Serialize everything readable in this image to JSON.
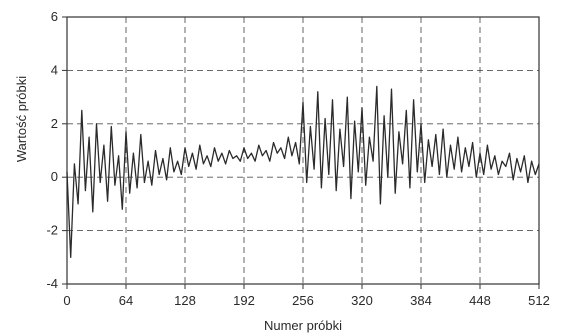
{
  "chart_data": {
    "type": "line",
    "title": "",
    "xlabel": "Numer próbki",
    "ylabel": "Wartość próbki",
    "xlim": [
      0,
      512
    ],
    "ylim": [
      -4,
      6
    ],
    "xticks": [
      0,
      64,
      128,
      192,
      256,
      320,
      384,
      448,
      512
    ],
    "yticks": [
      -4,
      -2,
      0,
      2,
      4,
      6
    ],
    "xtick_labels": [
      "0",
      "64",
      "128",
      "192",
      "256",
      "320",
      "384",
      "448",
      "512"
    ],
    "ytick_labels": [
      "-4",
      "-2",
      "0",
      "2",
      "4",
      "6"
    ],
    "grid": true,
    "legend": "none",
    "series": [
      {
        "x": [
          0,
          4,
          8,
          12,
          16,
          20,
          24,
          28,
          32,
          36,
          40,
          44,
          48,
          52,
          56,
          60,
          64,
          68,
          72,
          76,
          80,
          84,
          88,
          92,
          96,
          100,
          104,
          108,
          112,
          116,
          120,
          124,
          128,
          132,
          136,
          140,
          144,
          148,
          152,
          156,
          160,
          164,
          168,
          172,
          176,
          180,
          184,
          188,
          192,
          196,
          200,
          204,
          208,
          212,
          216,
          220,
          224,
          228,
          232,
          236,
          240,
          244,
          248,
          252,
          256,
          260,
          264,
          268,
          272,
          276,
          280,
          284,
          288,
          292,
          296,
          300,
          304,
          308,
          312,
          316,
          320,
          324,
          328,
          332,
          336,
          340,
          344,
          348,
          352,
          356,
          360,
          364,
          368,
          372,
          376,
          380,
          384,
          388,
          392,
          396,
          400,
          404,
          408,
          412,
          416,
          420,
          424,
          428,
          432,
          436,
          440,
          444,
          448,
          452,
          456,
          460,
          464,
          468,
          472,
          476,
          480,
          484,
          488,
          492,
          496,
          500,
          504,
          508,
          512
        ],
        "values": [
          0.2,
          -3.0,
          0.5,
          -1.0,
          2.5,
          -0.5,
          1.5,
          -1.3,
          2.0,
          -0.2,
          1.2,
          -0.9,
          1.9,
          -0.3,
          0.8,
          -1.2,
          1.7,
          -0.6,
          0.9,
          -0.4,
          1.6,
          -0.2,
          0.6,
          -0.3,
          1.0,
          0.1,
          0.7,
          -0.1,
          1.1,
          0.2,
          0.6,
          0.1,
          1.1,
          0.4,
          0.9,
          0.3,
          1.2,
          0.5,
          0.8,
          0.4,
          1.1,
          0.6,
          0.9,
          0.5,
          1.0,
          0.7,
          0.8,
          0.6,
          1.1,
          0.7,
          0.9,
          0.6,
          1.2,
          0.8,
          1.0,
          0.6,
          1.3,
          0.9,
          1.1,
          0.7,
          1.5,
          0.8,
          1.3,
          0.5,
          2.8,
          -0.2,
          1.9,
          0.3,
          3.2,
          -0.4,
          2.2,
          0.1,
          2.9,
          -0.5,
          1.8,
          0.4,
          3.0,
          -0.8,
          2.1,
          0.2,
          2.6,
          -0.3,
          1.5,
          0.6,
          3.4,
          -1.0,
          2.3,
          0.0,
          3.3,
          -0.6,
          1.7,
          0.5,
          2.5,
          -0.4,
          2.9,
          0.2,
          2.0,
          -0.2,
          1.4,
          0.4,
          1.6,
          0.1,
          1.8,
          0.0,
          1.2,
          0.3,
          1.5,
          0.2,
          1.1,
          0.4,
          1.3,
          0.0,
          0.9,
          0.1,
          1.2,
          0.3,
          0.8,
          0.1,
          0.6,
          0.4,
          0.9,
          -0.1,
          0.7,
          0.2,
          0.8,
          -0.2,
          0.6,
          0.1,
          0.5
        ]
      }
    ]
  }
}
